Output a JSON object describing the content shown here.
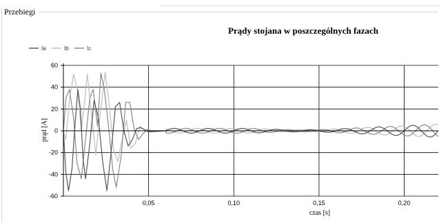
{
  "panel": {
    "title": "Przebiegi"
  },
  "chart_data": {
    "type": "line",
    "title": "Prądy stojana w poszczególnych fazach",
    "xlabel": "czas [s]",
    "ylabel": "prąd [A]",
    "xlim": [
      0,
      0.22
    ],
    "ylim": [
      -60,
      60
    ],
    "x_ticks": [
      0.05,
      0.1,
      0.15,
      0.2
    ],
    "x_tick_labels": [
      "0,05",
      "0,10",
      "0,15",
      "0,20"
    ],
    "y_ticks": [
      60,
      40,
      20,
      0,
      -20,
      -40,
      -60
    ],
    "y_tick_labels": [
      "60",
      "40",
      "20",
      "0",
      "-20",
      "-40",
      "-60"
    ],
    "grid": true,
    "legend_position": "top-left",
    "series": [
      {
        "name": "Ia",
        "color": "#555555",
        "points": [
          [
            0.0,
            0
          ],
          [
            0.0014,
            -38
          ],
          [
            0.003,
            -55
          ],
          [
            0.005,
            -35
          ],
          [
            0.0068,
            5
          ],
          [
            0.0085,
            38
          ],
          [
            0.01,
            20
          ],
          [
            0.0115,
            -25
          ],
          [
            0.013,
            -44
          ],
          [
            0.0155,
            -12
          ],
          [
            0.018,
            28
          ],
          [
            0.0205,
            12
          ],
          [
            0.023,
            -28
          ],
          [
            0.0255,
            -55
          ],
          [
            0.028,
            -20
          ],
          [
            0.0305,
            22
          ],
          [
            0.033,
            26
          ],
          [
            0.0355,
            0
          ],
          [
            0.038,
            -14
          ],
          [
            0.0405,
            -8
          ],
          [
            0.043,
            2
          ],
          [
            0.045,
            3
          ],
          [
            0.0475,
            1
          ],
          [
            0.05,
            -1
          ],
          [
            0.06,
            0
          ]
        ]
      },
      {
        "name": "Ib",
        "color": "#bdbdbd",
        "points": [
          [
            0.0,
            0
          ],
          [
            0.0014,
            -8
          ],
          [
            0.0035,
            28
          ],
          [
            0.006,
            52
          ],
          [
            0.0085,
            36
          ],
          [
            0.0105,
            0
          ],
          [
            0.0125,
            28
          ],
          [
            0.014,
            52
          ],
          [
            0.0165,
            15
          ],
          [
            0.019,
            -22
          ],
          [
            0.0215,
            14
          ],
          [
            0.0245,
            54
          ],
          [
            0.027,
            22
          ],
          [
            0.0295,
            -18
          ],
          [
            0.032,
            -28
          ],
          [
            0.0345,
            -8
          ],
          [
            0.037,
            10
          ],
          [
            0.0395,
            -16
          ],
          [
            0.042,
            -12
          ],
          [
            0.045,
            4
          ],
          [
            0.0475,
            1
          ],
          [
            0.05,
            -1
          ],
          [
            0.06,
            0
          ]
        ]
      },
      {
        "name": "Ic",
        "color": "#888888",
        "points": [
          [
            0.0,
            0
          ],
          [
            0.0015,
            30
          ],
          [
            0.0035,
            38
          ],
          [
            0.006,
            12
          ],
          [
            0.008,
            -30
          ],
          [
            0.0105,
            -44
          ],
          [
            0.013,
            -8
          ],
          [
            0.0155,
            30
          ],
          [
            0.0175,
            38
          ],
          [
            0.02,
            4
          ],
          [
            0.022,
            53
          ],
          [
            0.024,
            38
          ],
          [
            0.0265,
            4
          ],
          [
            0.029,
            -36
          ],
          [
            0.031,
            -52
          ],
          [
            0.034,
            -22
          ],
          [
            0.0365,
            26
          ],
          [
            0.039,
            26
          ],
          [
            0.0415,
            2
          ],
          [
            0.044,
            -8
          ],
          [
            0.0465,
            -3
          ],
          [
            0.049,
            1
          ],
          [
            0.052,
            0
          ],
          [
            0.06,
            0
          ]
        ]
      }
    ]
  }
}
